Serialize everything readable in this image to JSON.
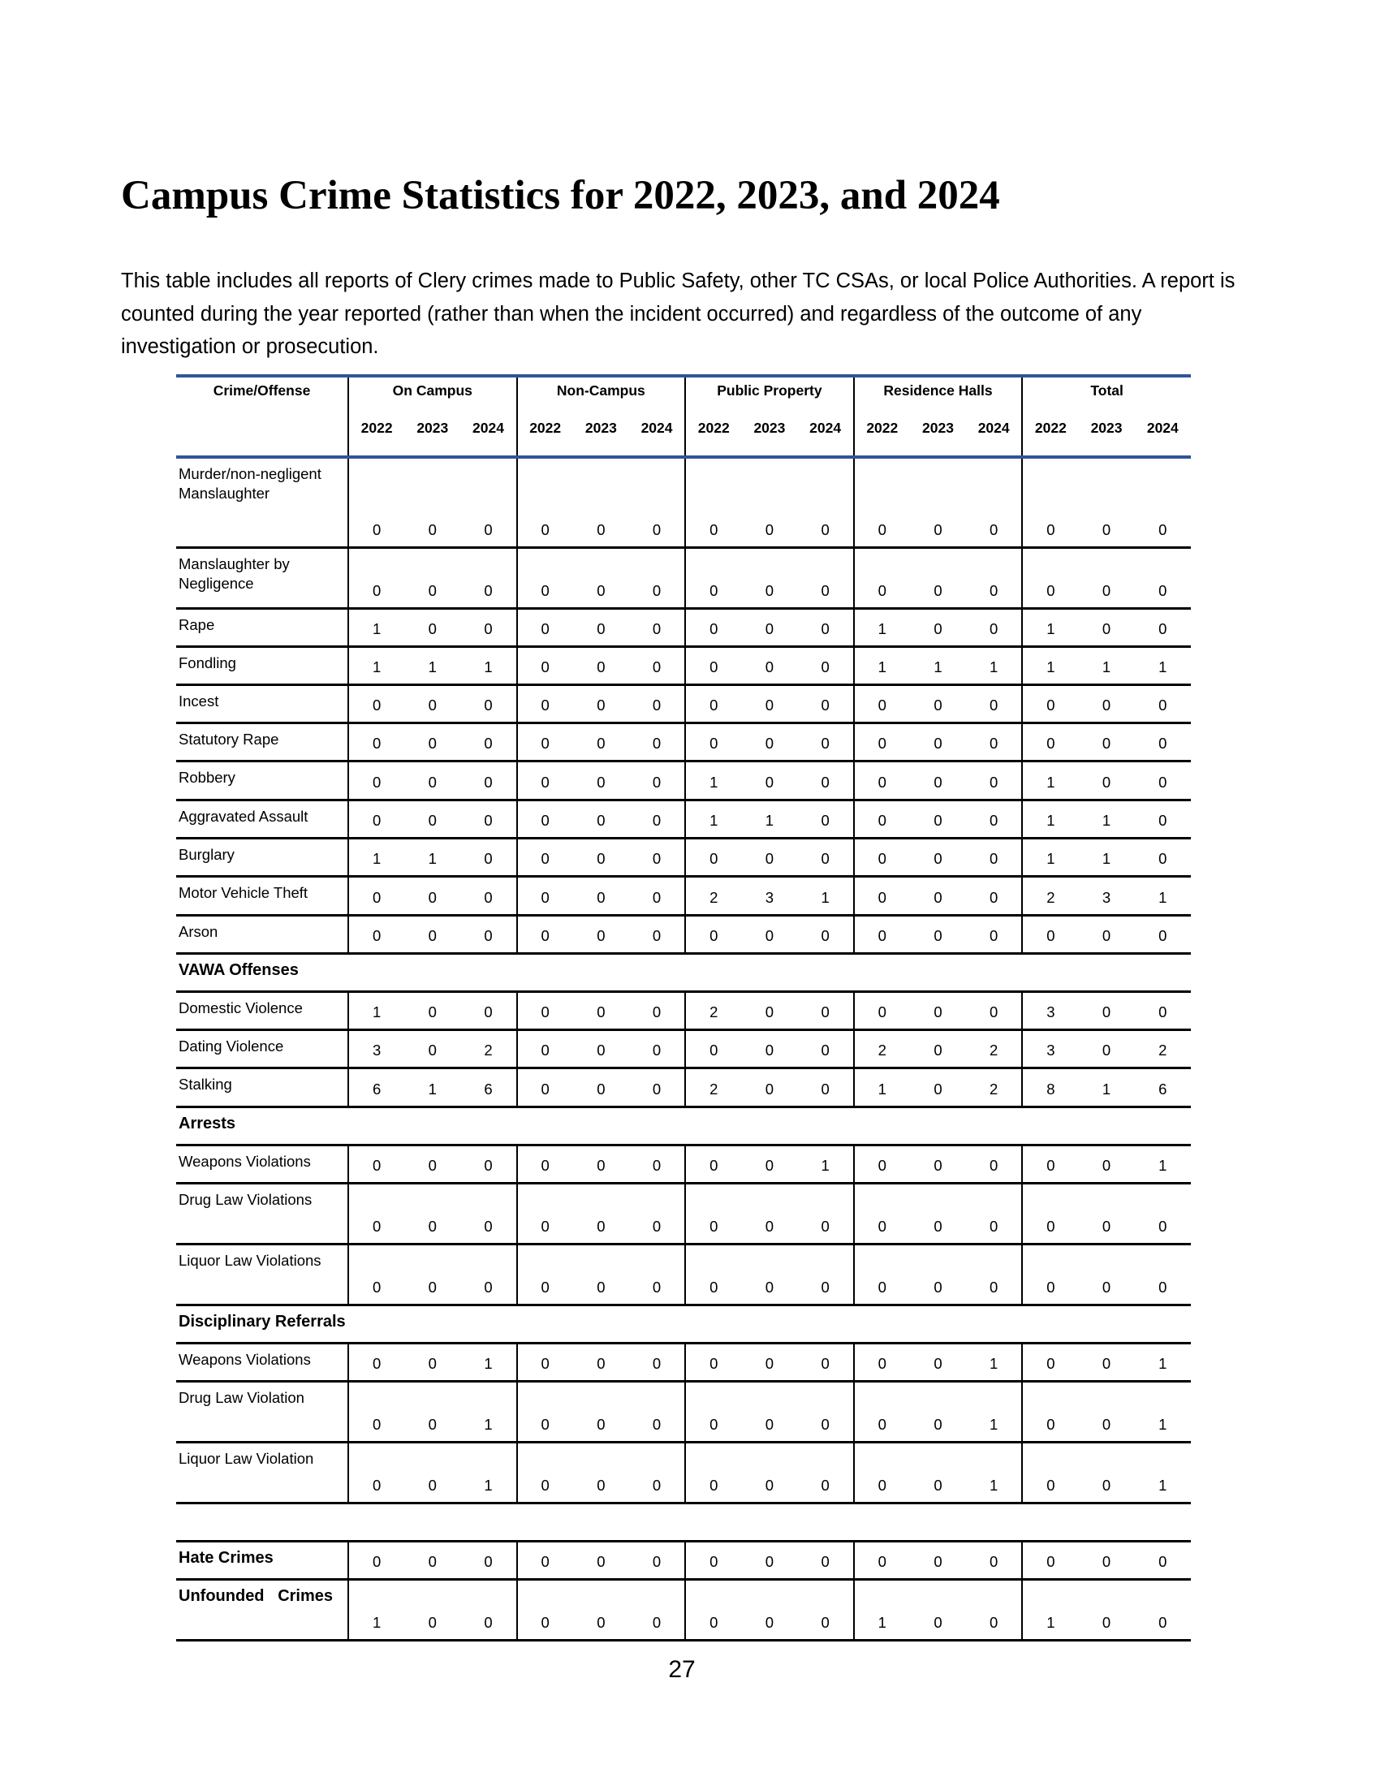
{
  "title": "Campus Crime Statistics for 2022, 2023, and 2024",
  "intro": "This table includes all reports of Clery crimes made to Public Safety, other TC CSAs, or local Police Authorities.  A report is counted during the year reported (rather than when the incident occurred) and regardless of the outcome of any investigation or prosecution.",
  "table": {
    "first_header": "Crime/Offense",
    "groups": [
      "On Campus",
      "Non-Campus",
      "Public Property",
      "Residence Halls",
      "Total"
    ],
    "years": [
      "2022",
      "2023",
      "2024"
    ],
    "rows": [
      {
        "type": "data",
        "label": "Murder/non-negligent Manslaughter",
        "values": [
          0,
          0,
          0,
          0,
          0,
          0,
          0,
          0,
          0,
          0,
          0,
          0,
          0,
          0,
          0
        ]
      },
      {
        "type": "data",
        "label": "Manslaughter by Negligence",
        "values": [
          0,
          0,
          0,
          0,
          0,
          0,
          0,
          0,
          0,
          0,
          0,
          0,
          0,
          0,
          0
        ]
      },
      {
        "type": "data",
        "label": "Rape",
        "values": [
          1,
          0,
          0,
          0,
          0,
          0,
          0,
          0,
          0,
          1,
          0,
          0,
          1,
          0,
          0
        ]
      },
      {
        "type": "data",
        "label": "Fondling",
        "values": [
          1,
          1,
          1,
          0,
          0,
          0,
          0,
          0,
          0,
          1,
          1,
          1,
          1,
          1,
          1
        ]
      },
      {
        "type": "data",
        "label": "Incest",
        "values": [
          0,
          0,
          0,
          0,
          0,
          0,
          0,
          0,
          0,
          0,
          0,
          0,
          0,
          0,
          0
        ]
      },
      {
        "type": "data",
        "label": "Statutory Rape",
        "values": [
          0,
          0,
          0,
          0,
          0,
          0,
          0,
          0,
          0,
          0,
          0,
          0,
          0,
          0,
          0
        ]
      },
      {
        "type": "data",
        "label": "Robbery",
        "values": [
          0,
          0,
          0,
          0,
          0,
          0,
          1,
          0,
          0,
          0,
          0,
          0,
          1,
          0,
          0
        ]
      },
      {
        "type": "data",
        "label": "Aggravated Assault",
        "values": [
          0,
          0,
          0,
          0,
          0,
          0,
          1,
          1,
          0,
          0,
          0,
          0,
          1,
          1,
          0
        ]
      },
      {
        "type": "data",
        "label": "Burglary",
        "values": [
          1,
          1,
          0,
          0,
          0,
          0,
          0,
          0,
          0,
          0,
          0,
          0,
          1,
          1,
          0
        ]
      },
      {
        "type": "data",
        "label": "Motor Vehicle Theft",
        "values": [
          0,
          0,
          0,
          0,
          0,
          0,
          2,
          3,
          1,
          0,
          0,
          0,
          2,
          3,
          1
        ]
      },
      {
        "type": "data",
        "label": "Arson",
        "values": [
          0,
          0,
          0,
          0,
          0,
          0,
          0,
          0,
          0,
          0,
          0,
          0,
          0,
          0,
          0
        ]
      },
      {
        "type": "section",
        "label": "VAWA Offenses"
      },
      {
        "type": "data",
        "label": "Domestic Violence",
        "values": [
          1,
          0,
          0,
          0,
          0,
          0,
          2,
          0,
          0,
          0,
          0,
          0,
          3,
          0,
          0
        ]
      },
      {
        "type": "data",
        "label": "Dating Violence",
        "values": [
          3,
          0,
          2,
          0,
          0,
          0,
          0,
          0,
          0,
          2,
          0,
          2,
          3,
          0,
          2
        ]
      },
      {
        "type": "data",
        "label": "Stalking",
        "values": [
          6,
          1,
          6,
          0,
          0,
          0,
          2,
          0,
          0,
          1,
          0,
          2,
          8,
          1,
          6
        ]
      },
      {
        "type": "section",
        "label": "Arrests"
      },
      {
        "type": "data",
        "label": "Weapons Violations",
        "values": [
          0,
          0,
          0,
          0,
          0,
          0,
          0,
          0,
          1,
          0,
          0,
          0,
          0,
          0,
          1
        ]
      },
      {
        "type": "data",
        "label": "Drug Law Violations",
        "values": [
          0,
          0,
          0,
          0,
          0,
          0,
          0,
          0,
          0,
          0,
          0,
          0,
          0,
          0,
          0
        ]
      },
      {
        "type": "data",
        "label": "Liquor Law Violations",
        "values": [
          0,
          0,
          0,
          0,
          0,
          0,
          0,
          0,
          0,
          0,
          0,
          0,
          0,
          0,
          0
        ]
      },
      {
        "type": "section",
        "label": "Disciplinary Referrals"
      },
      {
        "type": "data",
        "label": "Weapons Violations",
        "values": [
          0,
          0,
          1,
          0,
          0,
          0,
          0,
          0,
          0,
          0,
          0,
          1,
          0,
          0,
          1
        ]
      },
      {
        "type": "data",
        "label": "Drug Law Violation",
        "values": [
          0,
          0,
          1,
          0,
          0,
          0,
          0,
          0,
          0,
          0,
          0,
          1,
          0,
          0,
          1
        ]
      },
      {
        "type": "data",
        "label": "Liquor Law Violation",
        "values": [
          0,
          0,
          1,
          0,
          0,
          0,
          0,
          0,
          0,
          0,
          0,
          1,
          0,
          0,
          1
        ]
      },
      {
        "type": "spacer"
      },
      {
        "type": "data",
        "bold": true,
        "label": "Hate Crimes",
        "values": [
          0,
          0,
          0,
          0,
          0,
          0,
          0,
          0,
          0,
          0,
          0,
          0,
          0,
          0,
          0
        ]
      },
      {
        "type": "data",
        "bold": true,
        "label": "Unfounded   Crimes",
        "values": [
          1,
          0,
          0,
          0,
          0,
          0,
          0,
          0,
          0,
          1,
          0,
          0,
          1,
          0,
          0
        ]
      }
    ]
  },
  "colors": {
    "header_rule": "#2F5597",
    "rule": "#000000"
  },
  "page_number": "27"
}
